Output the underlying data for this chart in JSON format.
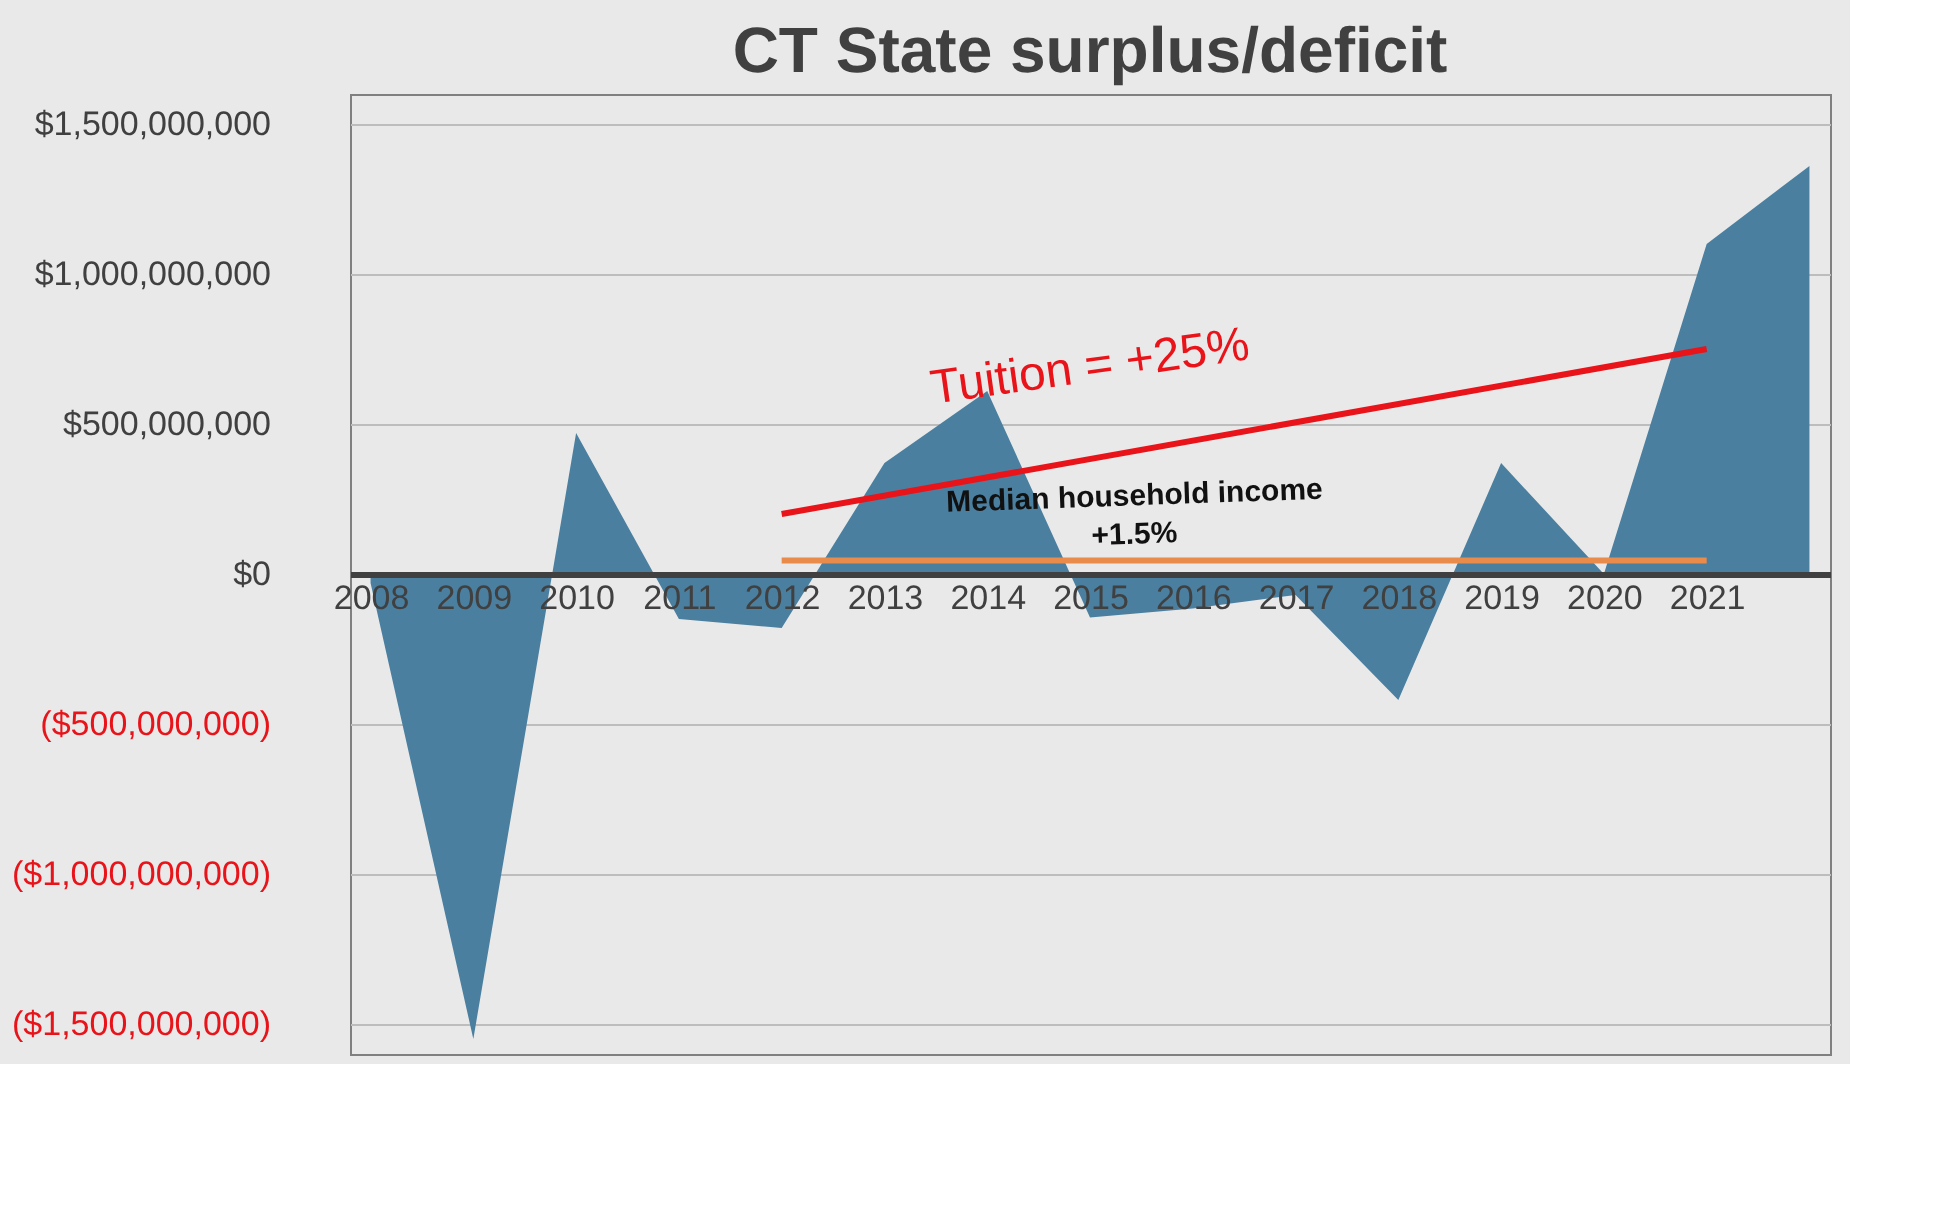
{
  "chart_data": {
    "type": "area",
    "title": "CT State surplus/deficit",
    "categories": [
      "2008",
      "2009",
      "2010",
      "2011",
      "2012",
      "2013",
      "2014",
      "2015",
      "2016",
      "2017",
      "2018",
      "2019",
      "2020",
      "2021",
      null
    ],
    "series": [
      {
        "color": "#4a7fa0",
        "values": [
          -30000000,
          -1550000000,
          470000000,
          -150000000,
          -180000000,
          370000000,
          610000000,
          -145000000,
          -115000000,
          -70000000,
          -420000000,
          370000000,
          0,
          1100000000,
          1360000000
        ]
      },
      {
        "type": "line",
        "color": "#e8141a",
        "values": [
          null,
          null,
          null,
          null,
          200000000,
          null,
          null,
          null,
          null,
          null,
          null,
          null,
          null,
          750000000,
          null
        ]
      },
      {
        "type": "line",
        "color": "#e98b4a",
        "values": [
          null,
          null,
          null,
          null,
          45000000,
          null,
          null,
          null,
          null,
          null,
          null,
          null,
          null,
          45000000,
          null
        ]
      }
    ],
    "ylim": [
      -1600000000,
      1600000000
    ],
    "yticks": [
      {
        "value": 1500000000,
        "label": "$1,500,000,000"
      },
      {
        "value": 1000000000,
        "label": "$1,000,000,000"
      },
      {
        "value": 500000000,
        "label": "$500,000,000"
      },
      {
        "value": 0,
        "label": "$0"
      },
      {
        "value": -500000000,
        "label": "($500,000,000)"
      },
      {
        "value": -1000000000,
        "label": "($1,000,000,000)"
      },
      {
        "value": -1500000000,
        "label": "($1,500,000,000)"
      }
    ],
    "grid": "y",
    "line_style": "solid",
    "annotations": [
      "Tuition = +25%",
      "Median household income",
      "+1.5%"
    ]
  }
}
